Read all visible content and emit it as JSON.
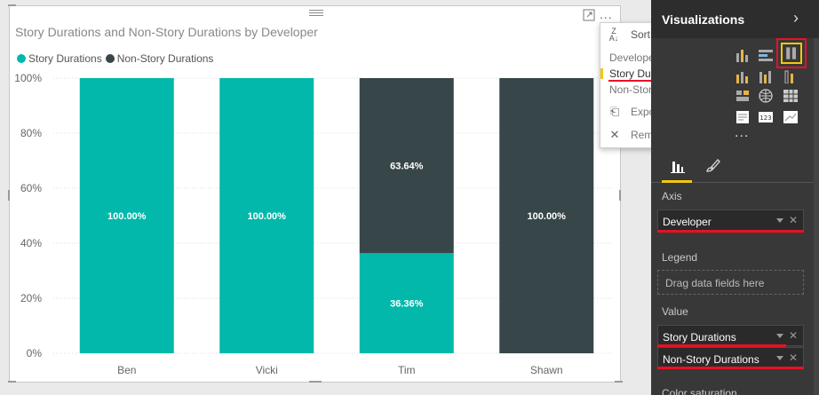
{
  "visual": {
    "title": "Story Durations and Non-Story Durations by Developer",
    "more_label": "...",
    "legend": [
      {
        "label": "Story Durations",
        "color": "#01b8aa"
      },
      {
        "label": "Non-Story Durations",
        "color": "#374649"
      }
    ]
  },
  "chart_data": {
    "type": "bar",
    "stacked": "100%",
    "title": "Story Durations and Non-Story Durations by Developer",
    "categories": [
      "Ben",
      "Vicki",
      "Tim",
      "Shawn"
    ],
    "series": [
      {
        "name": "Story Durations",
        "color": "#01b8aa",
        "values": [
          100.0,
          100.0,
          36.36,
          0.0
        ]
      },
      {
        "name": "Non-Story Durations",
        "color": "#374649",
        "values": [
          0.0,
          0.0,
          63.64,
          100.0
        ]
      }
    ],
    "data_labels": [
      {
        "category": "Ben",
        "series": "Story Durations",
        "text": "100.00%"
      },
      {
        "category": "Vicki",
        "series": "Story Durations",
        "text": "100.00%"
      },
      {
        "category": "Tim",
        "series": "Story Durations",
        "text": "36.36%"
      },
      {
        "category": "Tim",
        "series": "Non-Story Durations",
        "text": "63.64%"
      },
      {
        "category": "Shawn",
        "series": "Non-Story Durations",
        "text": "100.00%"
      }
    ],
    "y_ticks": [
      "0%",
      "20%",
      "40%",
      "60%",
      "80%",
      "100%"
    ],
    "ylim": [
      0,
      100
    ],
    "xlabel": "",
    "ylabel": "",
    "grid": true,
    "legend_position": "top-left"
  },
  "context_menu": {
    "sort_label": "Sort By",
    "sort_options": [
      "Developer",
      "Story Durations",
      "Non-Story Durations"
    ],
    "selected_sort": "Story Durations",
    "export_label": "Export data",
    "remove_label": "Remove"
  },
  "pane": {
    "title": "Visualizations",
    "axis_label": "Axis",
    "axis_field": "Developer",
    "legend_label": "Legend",
    "legend_placeholder": "Drag data fields here",
    "value_label": "Value",
    "value_fields": [
      "Story Durations",
      "Non-Story Durations"
    ],
    "color_saturation_label": "Color saturation",
    "more_visuals_label": "...",
    "accent_color": "#f2c811",
    "highlight_color": "#e81123"
  }
}
